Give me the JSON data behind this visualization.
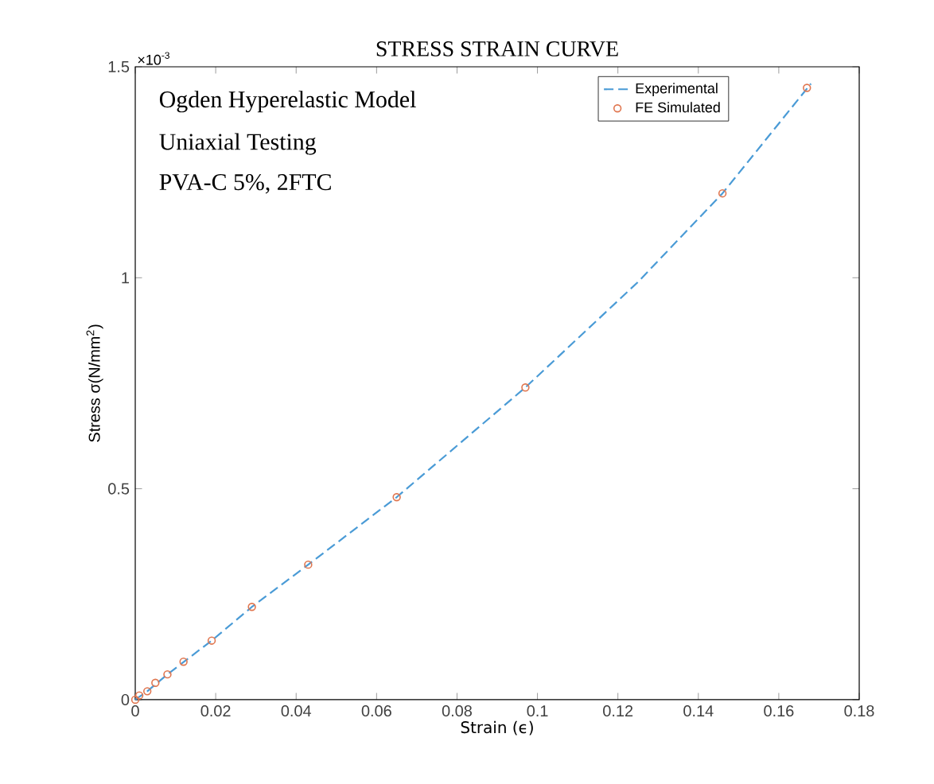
{
  "chart_data": {
    "type": "line",
    "title": "STRESS STRAIN CURVE",
    "xlabel": "Strain (ϵ)",
    "ylabel": "Stress σ(N/mm$^{2}$)",
    "annotations": [
      "×10$^{-3}$",
      "Ogden Hyperelastic Model",
      "Uniaxial Testing",
      "PVA-C 5%, 2FTC"
    ],
    "series": [
      {
        "name": "Experimental",
        "type": "line",
        "color": "#4a9bd6",
        "line_style": "dashed",
        "marker": "none",
        "x": [
          0,
          0.003,
          0.008,
          0.019,
          0.029,
          0.043,
          0.065,
          0.097,
          0.125,
          0.146,
          0.168
        ],
        "values": [
          0,
          0.02,
          0.06,
          0.14,
          0.22,
          0.32,
          0.48,
          0.74,
          0.99,
          1.2,
          1.46
        ]
      },
      {
        "name": "FE Simulated",
        "type": "scatter",
        "color": "#e0764f",
        "marker": "circle",
        "x": [
          0,
          0.001,
          0.003,
          0.005,
          0.008,
          0.012,
          0.019,
          0.029,
          0.043,
          0.065,
          0.097,
          0.146,
          0.167
        ],
        "values": [
          0,
          0.01,
          0.02,
          0.04,
          0.06,
          0.09,
          0.14,
          0.22,
          0.32,
          0.48,
          0.74,
          1.2,
          1.45
        ]
      }
    ],
    "xlim": [
      0,
      0.18
    ],
    "xticks": [
      0,
      0.02,
      0.04,
      0.06,
      0.08,
      0.1,
      0.12,
      0.14,
      0.16,
      0.18
    ],
    "ylim": [
      0,
      1.5
    ],
    "yticks": [
      0,
      0.5,
      1,
      1.5
    ],
    "grid": false,
    "legend": "top right"
  }
}
